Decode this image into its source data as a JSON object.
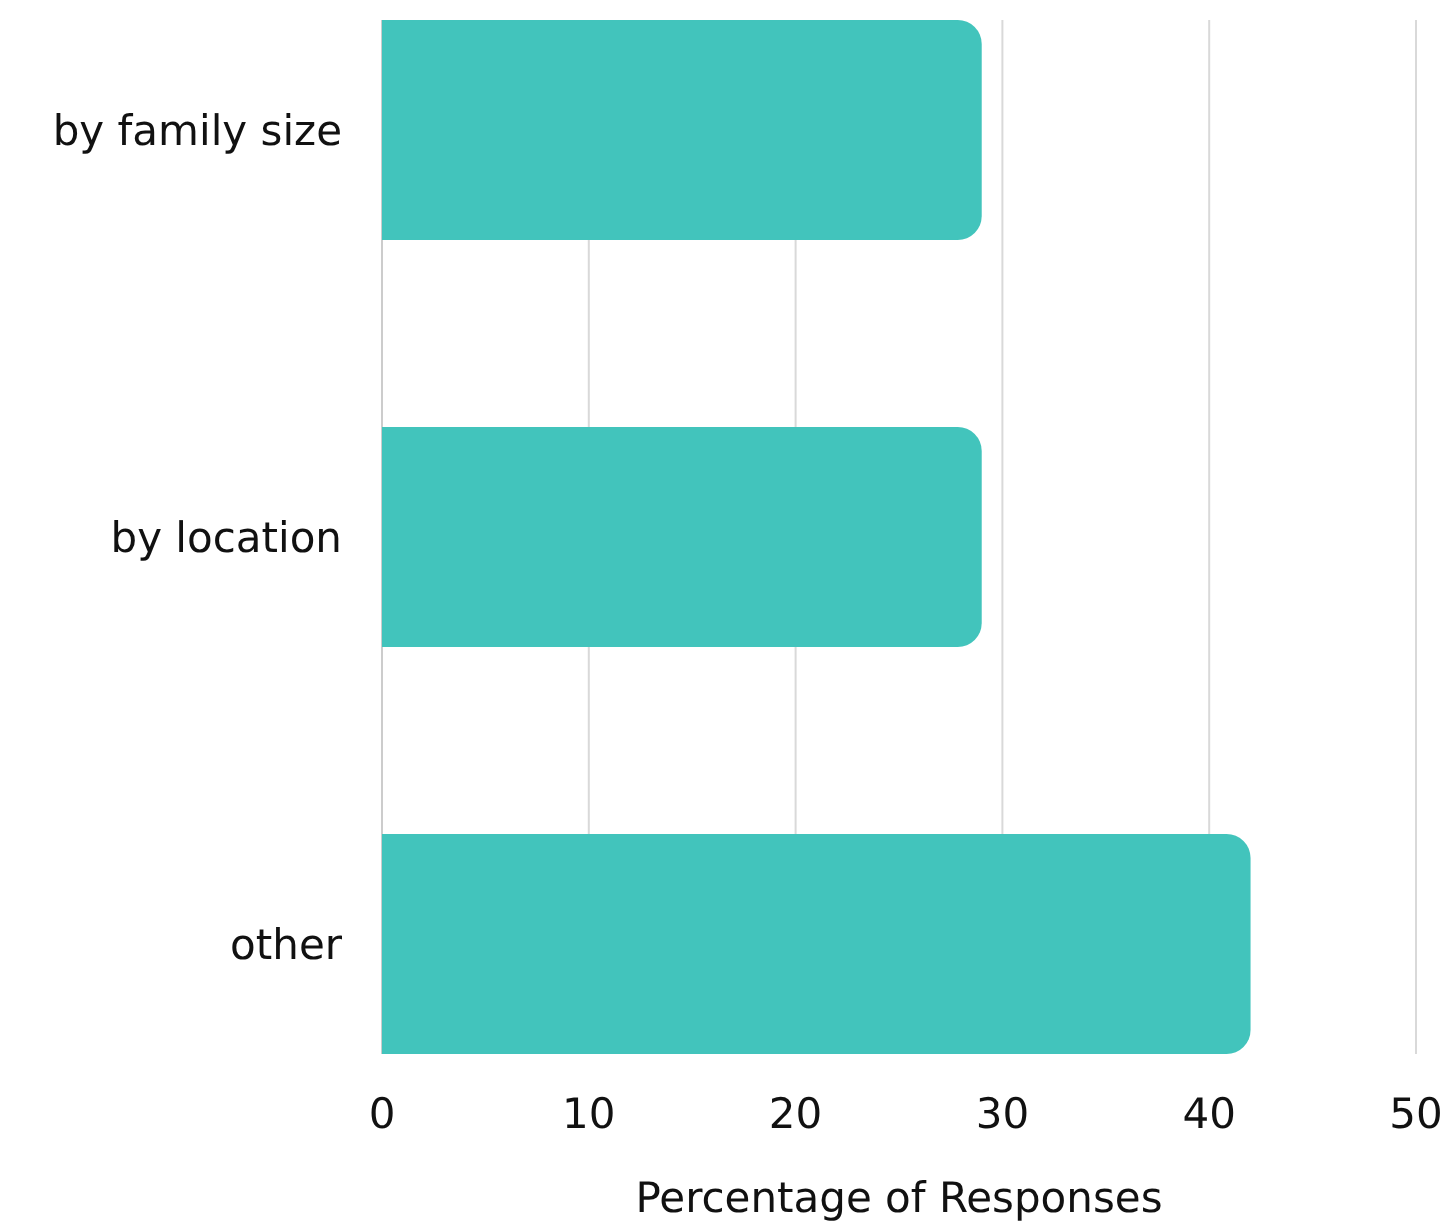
{
  "chart_data": {
    "type": "bar",
    "orientation": "horizontal",
    "categories": [
      "by family size",
      "by location",
      "other"
    ],
    "values": [
      29,
      29,
      42
    ],
    "color": "#42c4bc",
    "xlim": [
      0,
      50
    ],
    "xticks": [
      0,
      10,
      20,
      30,
      40,
      50
    ],
    "xlabel": "Percentage of Responses",
    "grid": "x"
  }
}
